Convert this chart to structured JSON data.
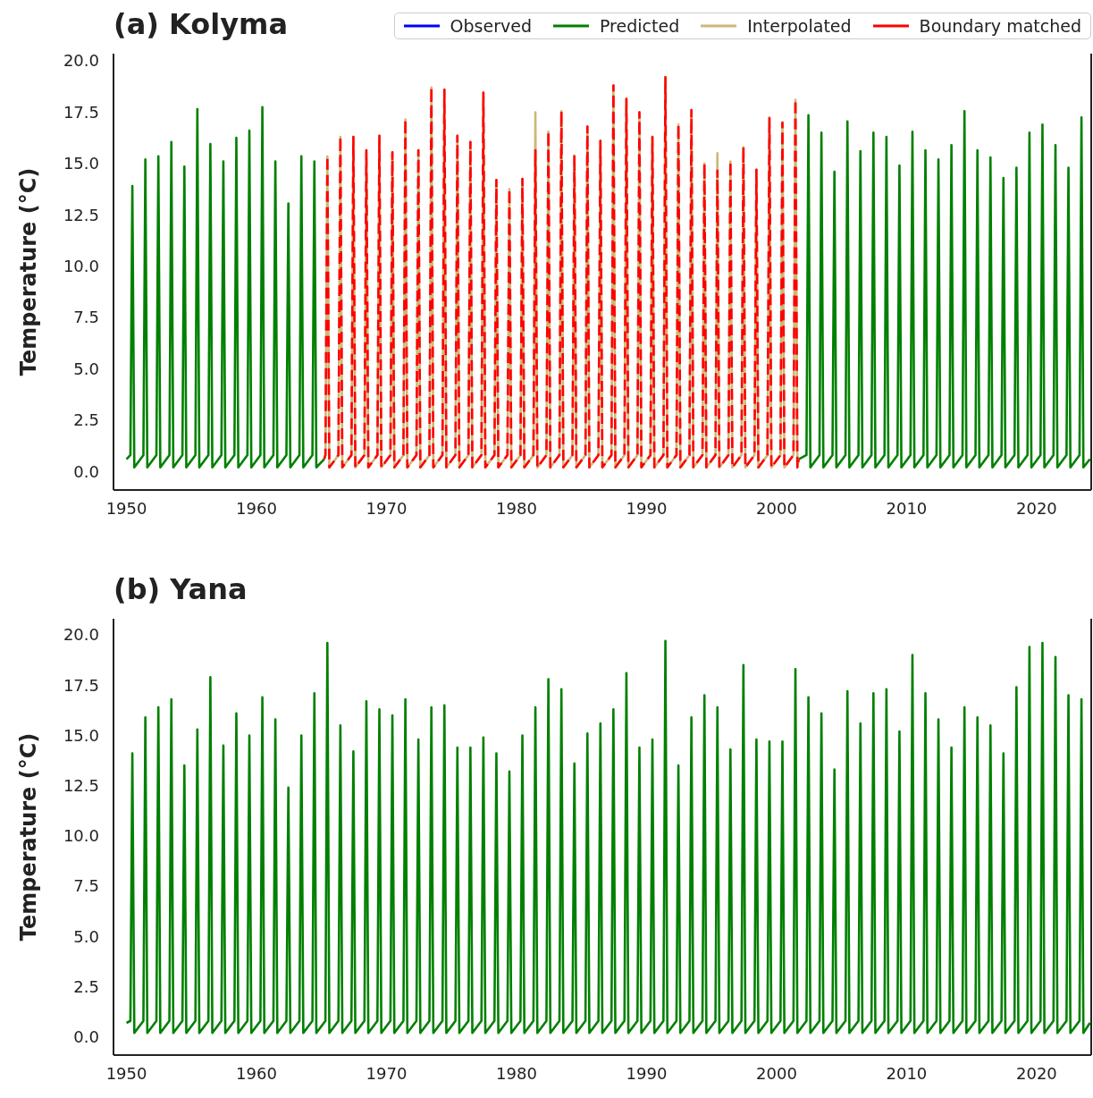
{
  "chart_data": [
    {
      "type": "line",
      "title": "(a) Kolyma",
      "ylabel": "Temperature (°C)",
      "xlim": [
        1949,
        2024.2
      ],
      "xticks": [
        1950,
        1960,
        1970,
        1980,
        1990,
        2000,
        2010,
        2020
      ],
      "ylim": [
        -0.9,
        20.35
      ],
      "yticks": [
        {
          "value": 0,
          "label": "0.0"
        },
        {
          "value": 2.5,
          "label": "2.5"
        },
        {
          "value": 5,
          "label": "5.0"
        },
        {
          "value": 7.5,
          "label": "7.5"
        },
        {
          "value": 10,
          "label": "10.0"
        },
        {
          "value": 12.5,
          "label": "12.5"
        },
        {
          "value": 15,
          "label": "15.0"
        },
        {
          "value": 17.5,
          "label": "17.5"
        },
        {
          "value": 20,
          "label": "20.0"
        }
      ],
      "grid": false,
      "legend": "top right",
      "series": [
        {
          "name": "Observed",
          "color": "#0000ff",
          "line_style": "solid"
        },
        {
          "name": "Predicted",
          "color": "#008000",
          "line_style": "solid",
          "x": [
            1950,
            1950.3,
            1950.45,
            1950.6,
            1951.3,
            1951.45,
            1951.6,
            1952.3,
            1952.45,
            1952.6,
            1953.3,
            1953.45,
            1953.6,
            1954.3,
            1954.45,
            1954.6,
            1955.3,
            1955.45,
            1955.6,
            1956.3,
            1956.45,
            1956.6,
            1957.3,
            1957.45,
            1957.6,
            1958.3,
            1958.45,
            1958.6,
            1959.3,
            1959.45,
            1959.6,
            1960.3,
            1960.45,
            1960.6,
            1961.3,
            1961.45,
            1961.6,
            1962.3,
            1962.45,
            1962.6,
            1963.3,
            1963.45,
            1963.6,
            1964.3,
            1964.45,
            1964.6,
            1965.2,
            1983,
            2001.7,
            2002.3,
            2002.45,
            2002.6,
            2003.3,
            2003.45,
            2003.6,
            2004.3,
            2004.45,
            2004.6,
            2005.3,
            2005.45,
            2005.6,
            2006.3,
            2006.45,
            2006.6,
            2007.3,
            2007.45,
            2007.6,
            2008.3,
            2008.45,
            2008.6,
            2009.3,
            2009.45,
            2009.6,
            2010.3,
            2010.45,
            2010.6,
            2011.3,
            2011.45,
            2011.6,
            2012.3,
            2012.45,
            2012.6,
            2013.3,
            2013.45,
            2013.6,
            2014.3,
            2014.45,
            2014.6,
            2015.3,
            2015.45,
            2015.6,
            2016.3,
            2016.45,
            2016.6,
            2017.3,
            2017.45,
            2017.6,
            2018.3,
            2018.45,
            2018.6,
            2019.3,
            2019.45,
            2019.6,
            2020.3,
            2020.45,
            2020.6,
            2021.3,
            2021.45,
            2021.6,
            2022.3,
            2022.45,
            2022.6,
            2023.3,
            2023.45,
            2023.6,
            2024.1
          ],
          "values": [
            0.6,
            0.8,
            13.9,
            0.2,
            0.8,
            15.2,
            0.2,
            0.8,
            15.35,
            0.2,
            0.8,
            16.05,
            0.2,
            0.8,
            14.85,
            0.2,
            0.8,
            17.65,
            0.2,
            0.8,
            15.95,
            0.2,
            0.8,
            15.1,
            0.2,
            0.8,
            16.25,
            0.2,
            0.8,
            16.6,
            0.2,
            0.8,
            17.75,
            0.2,
            0.8,
            15.1,
            0.2,
            0.8,
            13.05,
            0.2,
            0.8,
            15.35,
            0.2,
            0.8,
            15.1,
            0.2,
            0.6,
            null,
            0.6,
            0.8,
            17.35,
            0.2,
            0.8,
            16.5,
            0.2,
            0.8,
            14.6,
            0.2,
            0.8,
            17.05,
            0.2,
            0.8,
            15.6,
            0.2,
            0.8,
            16.5,
            0.2,
            0.8,
            16.3,
            0.2,
            0.8,
            14.9,
            0.2,
            0.8,
            16.55,
            0.2,
            0.8,
            15.65,
            0.2,
            0.8,
            15.2,
            0.2,
            0.8,
            15.9,
            0.2,
            0.8,
            17.55,
            0.2,
            0.8,
            15.65,
            0.2,
            0.8,
            15.3,
            0.2,
            0.8,
            14.3,
            0.2,
            0.8,
            14.8,
            0.2,
            0.8,
            16.5,
            0.2,
            0.8,
            16.9,
            0.2,
            0.8,
            15.9,
            0.2,
            0.8,
            14.8,
            0.2,
            0.8,
            17.25,
            0.2,
            0.6
          ]
        },
        {
          "name": "Interpolated",
          "color": "#cdb779",
          "line_style": "solid",
          "x": [
            1965.2,
            1965.3,
            1965.45,
            1965.6,
            1966.3,
            1966.45,
            1966.6,
            1967.3,
            1967.45,
            1967.6,
            1968.3,
            1968.45,
            1968.6,
            1969.3,
            1969.45,
            1969.6,
            1970.3,
            1970.45,
            1970.6,
            1971.3,
            1971.45,
            1971.6,
            1972.3,
            1972.45,
            1972.6,
            1973.3,
            1973.45,
            1973.6,
            1974.3,
            1974.45,
            1974.6,
            1975.3,
            1975.45,
            1975.6,
            1976.3,
            1976.45,
            1976.6,
            1977.3,
            1977.45,
            1977.6,
            1978.3,
            1978.45,
            1978.6,
            1979.3,
            1979.45,
            1979.6,
            1980.3,
            1980.45,
            1980.6,
            1981.3,
            1981.45,
            1981.6,
            1982.3,
            1982.45,
            1982.6,
            1983.3,
            1983.45,
            1983.6,
            1984.3,
            1984.45,
            1984.6,
            1985.3,
            1985.45,
            1985.6,
            1986.3,
            1986.45,
            1986.6,
            1987.3,
            1987.45,
            1987.6,
            1988.3,
            1988.45,
            1988.6,
            1989.3,
            1989.45,
            1989.6,
            1990.3,
            1990.45,
            1990.6,
            1991.3,
            1991.45,
            1991.6,
            1992.3,
            1992.45,
            1992.6,
            1993.3,
            1993.45,
            1993.6,
            1994.3,
            1994.45,
            1994.6,
            1995.3,
            1995.45,
            1995.6,
            1996.3,
            1996.45,
            1996.6,
            1997.3,
            1997.45,
            1997.6,
            1998.3,
            1998.45,
            1998.6,
            1999.3,
            1999.45,
            1999.6,
            2000.3,
            2000.45,
            2000.6,
            2001.3,
            2001.45,
            2001.6,
            2001.7
          ],
          "values": [
            0.6,
            0.8,
            15.35,
            0.2,
            0.8,
            16.3,
            0.2,
            0.8,
            16.3,
            0.2,
            0.8,
            15.65,
            0.2,
            0.8,
            16.35,
            0.2,
            0.8,
            15.55,
            0.2,
            0.8,
            17.15,
            0.2,
            0.8,
            15.65,
            0.2,
            0.8,
            18.7,
            0.2,
            0.8,
            18.6,
            0.2,
            0.8,
            16.35,
            0.2,
            0.8,
            16.05,
            0.2,
            0.8,
            18.45,
            0.2,
            0.8,
            14.2,
            0.2,
            0.8,
            13.75,
            0.2,
            0.8,
            14.25,
            0.2,
            0.8,
            17.5,
            0.2,
            0.8,
            16.55,
            0.2,
            0.8,
            17.55,
            0.2,
            0.8,
            15.4,
            0.2,
            0.8,
            16.8,
            0.2,
            0.8,
            16.1,
            0.2,
            0.8,
            18.8,
            0.2,
            0.8,
            18.15,
            0.2,
            0.8,
            17.5,
            0.2,
            0.8,
            16.3,
            0.2,
            0.8,
            19.2,
            0.2,
            0.8,
            16.9,
            0.2,
            0.8,
            17.6,
            0.2,
            0.8,
            15.0,
            0.2,
            0.8,
            15.5,
            0.2,
            0.8,
            15.1,
            0.2,
            0.8,
            15.8,
            0.2,
            0.8,
            14.7,
            0.2,
            0.8,
            17.25,
            0.2,
            0.8,
            17.0,
            0.2,
            0.8,
            18.1,
            0.2,
            0.6
          ]
        },
        {
          "name": "Boundary matched",
          "color": "#ff0000",
          "line_style": "dashed",
          "x": [
            1965.2,
            1965.3,
            1965.45,
            1965.6,
            1966.3,
            1966.45,
            1966.6,
            1967.3,
            1967.45,
            1967.6,
            1968.3,
            1968.45,
            1968.6,
            1969.3,
            1969.45,
            1969.6,
            1970.3,
            1970.45,
            1970.6,
            1971.3,
            1971.45,
            1971.6,
            1972.3,
            1972.45,
            1972.6,
            1973.3,
            1973.45,
            1973.6,
            1974.3,
            1974.45,
            1974.6,
            1975.3,
            1975.45,
            1975.6,
            1976.3,
            1976.45,
            1976.6,
            1977.3,
            1977.45,
            1977.6,
            1978.3,
            1978.45,
            1978.6,
            1979.3,
            1979.45,
            1979.6,
            1980.3,
            1980.45,
            1980.6,
            1981.3,
            1981.45,
            1981.6,
            1982.3,
            1982.45,
            1982.6,
            1983.3,
            1983.45,
            1983.6,
            1984.3,
            1984.45,
            1984.6,
            1985.3,
            1985.45,
            1985.6,
            1986.3,
            1986.45,
            1986.6,
            1987.3,
            1987.45,
            1987.6,
            1988.3,
            1988.45,
            1988.6,
            1989.3,
            1989.45,
            1989.6,
            1990.3,
            1990.45,
            1990.6,
            1991.3,
            1991.45,
            1991.6,
            1992.3,
            1992.45,
            1992.6,
            1993.3,
            1993.45,
            1993.6,
            1994.3,
            1994.45,
            1994.6,
            1995.3,
            1995.45,
            1995.6,
            1996.3,
            1996.45,
            1996.6,
            1997.3,
            1997.45,
            1997.6,
            1998.3,
            1998.45,
            1998.6,
            1999.3,
            1999.45,
            1999.6,
            2000.3,
            2000.45,
            2000.6,
            2001.3,
            2001.45,
            2001.6,
            2001.7
          ],
          "values": [
            0.6,
            0.8,
            15.35,
            0.2,
            0.8,
            16.3,
            0.2,
            0.8,
            16.3,
            0.2,
            0.8,
            15.65,
            0.2,
            0.8,
            16.35,
            0.2,
            0.8,
            15.55,
            0.2,
            0.8,
            17.15,
            0.2,
            0.8,
            15.65,
            0.2,
            0.8,
            18.7,
            0.2,
            0.8,
            18.6,
            0.2,
            0.8,
            16.35,
            0.2,
            0.8,
            16.05,
            0.2,
            0.8,
            18.45,
            0.2,
            0.8,
            14.2,
            0.2,
            0.8,
            13.75,
            0.2,
            0.8,
            14.25,
            0.2,
            0.8,
            15.65,
            0.2,
            0.8,
            16.55,
            0.2,
            0.8,
            17.55,
            0.2,
            0.8,
            15.4,
            0.2,
            0.8,
            16.8,
            0.2,
            0.8,
            16.1,
            0.2,
            0.8,
            18.8,
            0.2,
            0.8,
            18.15,
            0.2,
            0.8,
            17.5,
            0.2,
            0.8,
            16.3,
            0.2,
            0.8,
            19.2,
            0.2,
            0.8,
            16.9,
            0.2,
            0.8,
            17.6,
            0.2,
            0.8,
            15.0,
            0.2,
            0.8,
            14.65,
            0.2,
            0.8,
            15.1,
            0.2,
            0.8,
            15.8,
            0.2,
            0.8,
            14.7,
            0.2,
            0.8,
            17.25,
            0.2,
            0.8,
            17.0,
            0.2,
            0.8,
            18.1,
            0.2,
            0.6
          ]
        }
      ]
    },
    {
      "type": "line",
      "title": "(b) Yana",
      "ylabel": "Temperature (°C)",
      "xlim": [
        1949,
        2024.2
      ],
      "xticks": [
        1950,
        1960,
        1970,
        1980,
        1990,
        2000,
        2010,
        2020
      ],
      "ylim": [
        -0.9,
        20.8
      ],
      "yticks": [
        {
          "value": 0,
          "label": "0.0"
        },
        {
          "value": 2.5,
          "label": "2.5"
        },
        {
          "value": 5,
          "label": "5.0"
        },
        {
          "value": 7.5,
          "label": "7.5"
        },
        {
          "value": 10,
          "label": "10.0"
        },
        {
          "value": 12.5,
          "label": "12.5"
        },
        {
          "value": 15,
          "label": "15.0"
        },
        {
          "value": 17.5,
          "label": "17.5"
        },
        {
          "value": 20,
          "label": "20.0"
        }
      ],
      "grid": false,
      "legend": false,
      "series": [
        {
          "color": "#008000",
          "line_style": "solid",
          "x": [
            1950,
            1950.3,
            1950.45,
            1950.6,
            1951.3,
            1951.45,
            1951.6,
            1952.3,
            1952.45,
            1952.6,
            1953.3,
            1953.45,
            1953.6,
            1954.3,
            1954.45,
            1954.6,
            1955.3,
            1955.45,
            1955.6,
            1956.3,
            1956.45,
            1956.6,
            1957.3,
            1957.45,
            1957.6,
            1958.3,
            1958.45,
            1958.6,
            1959.3,
            1959.45,
            1959.6,
            1960.3,
            1960.45,
            1960.6,
            1961.3,
            1961.45,
            1961.6,
            1962.3,
            1962.45,
            1962.6,
            1963.3,
            1963.45,
            1963.6,
            1964.3,
            1964.45,
            1964.6,
            1965.3,
            1965.45,
            1965.6,
            1966.3,
            1966.45,
            1966.6,
            1967.3,
            1967.45,
            1967.6,
            1968.3,
            1968.45,
            1968.6,
            1969.3,
            1969.45,
            1969.6,
            1970.3,
            1970.45,
            1970.6,
            1971.3,
            1971.45,
            1971.6,
            1972.3,
            1972.45,
            1972.6,
            1973.3,
            1973.45,
            1973.6,
            1974.3,
            1974.45,
            1974.6,
            1975.3,
            1975.45,
            1975.6,
            1976.3,
            1976.45,
            1976.6,
            1977.3,
            1977.45,
            1977.6,
            1978.3,
            1978.45,
            1978.6,
            1979.3,
            1979.45,
            1979.6,
            1980.3,
            1980.45,
            1980.6,
            1981.3,
            1981.45,
            1981.6,
            1982.3,
            1982.45,
            1982.6,
            1983.3,
            1983.45,
            1983.6,
            1984.3,
            1984.45,
            1984.6,
            1985.3,
            1985.45,
            1985.6,
            1986.3,
            1986.45,
            1986.6,
            1987.3,
            1987.45,
            1987.6,
            1988.3,
            1988.45,
            1988.6,
            1989.3,
            1989.45,
            1989.6,
            1990.3,
            1990.45,
            1990.6,
            1991.3,
            1991.45,
            1991.6,
            1992.3,
            1992.45,
            1992.6,
            1993.3,
            1993.45,
            1993.6,
            1994.3,
            1994.45,
            1994.6,
            1995.3,
            1995.45,
            1995.6,
            1996.3,
            1996.45,
            1996.6,
            1997.3,
            1997.45,
            1997.6,
            1998.3,
            1998.45,
            1998.6,
            1999.3,
            1999.45,
            1999.6,
            2000.3,
            2000.45,
            2000.6,
            2001.3,
            2001.45,
            2001.6,
            2002.3,
            2002.45,
            2002.6,
            2003.3,
            2003.45,
            2003.6,
            2004.3,
            2004.45,
            2004.6,
            2005.3,
            2005.45,
            2005.6,
            2006.3,
            2006.45,
            2006.6,
            2007.3,
            2007.45,
            2007.6,
            2008.3,
            2008.45,
            2008.6,
            2009.3,
            2009.45,
            2009.6,
            2010.3,
            2010.45,
            2010.6,
            2011.3,
            2011.45,
            2011.6,
            2012.3,
            2012.45,
            2012.6,
            2013.3,
            2013.45,
            2013.6,
            2014.3,
            2014.45,
            2014.6,
            2015.3,
            2015.45,
            2015.6,
            2016.3,
            2016.45,
            2016.6,
            2017.3,
            2017.45,
            2017.6,
            2018.3,
            2018.45,
            2018.6,
            2019.3,
            2019.45,
            2019.6,
            2020.3,
            2020.45,
            2020.6,
            2021.3,
            2021.45,
            2021.6,
            2022.3,
            2022.45,
            2022.6,
            2023.3,
            2023.45,
            2023.6,
            2024.1
          ],
          "values": [
            0.7,
            0.8,
            14.1,
            0.2,
            0.8,
            15.9,
            0.2,
            0.8,
            16.4,
            0.2,
            0.8,
            16.8,
            0.2,
            0.8,
            13.5,
            0.2,
            0.8,
            15.3,
            0.2,
            0.8,
            17.9,
            0.2,
            0.8,
            14.5,
            0.2,
            0.8,
            16.1,
            0.2,
            0.8,
            15.0,
            0.2,
            0.8,
            16.9,
            0.2,
            0.8,
            15.8,
            0.2,
            0.8,
            12.4,
            0.2,
            0.8,
            15.0,
            0.2,
            0.8,
            17.1,
            0.2,
            0.8,
            19.6,
            0.2,
            0.8,
            15.5,
            0.2,
            0.8,
            14.2,
            0.2,
            0.8,
            16.7,
            0.2,
            0.8,
            16.3,
            0.2,
            0.8,
            16.0,
            0.2,
            0.8,
            16.8,
            0.2,
            0.8,
            14.8,
            0.2,
            0.8,
            16.4,
            0.2,
            0.8,
            16.5,
            0.2,
            0.8,
            14.4,
            0.2,
            0.8,
            14.4,
            0.2,
            0.8,
            14.9,
            0.2,
            0.8,
            14.1,
            0.2,
            0.8,
            13.2,
            0.2,
            0.8,
            15.0,
            0.2,
            0.8,
            16.4,
            0.2,
            0.8,
            17.8,
            0.2,
            0.8,
            17.3,
            0.2,
            0.8,
            13.6,
            0.2,
            0.8,
            15.1,
            0.2,
            0.8,
            15.6,
            0.2,
            0.8,
            16.3,
            0.2,
            0.8,
            18.1,
            0.2,
            0.8,
            14.4,
            0.2,
            0.8,
            14.8,
            0.2,
            0.8,
            19.7,
            0.2,
            0.8,
            13.5,
            0.2,
            0.8,
            15.9,
            0.2,
            0.8,
            17.0,
            0.2,
            0.8,
            16.4,
            0.2,
            0.8,
            14.3,
            0.2,
            0.8,
            18.5,
            0.2,
            0.8,
            14.8,
            0.2,
            0.8,
            14.7,
            0.2,
            0.8,
            14.7,
            0.2,
            0.8,
            18.3,
            0.2,
            0.8,
            16.9,
            0.2,
            0.8,
            16.1,
            0.2,
            0.8,
            13.3,
            0.2,
            0.8,
            17.2,
            0.2,
            0.8,
            15.6,
            0.2,
            0.8,
            17.1,
            0.2,
            0.8,
            17.3,
            0.2,
            0.8,
            15.2,
            0.2,
            0.8,
            19.0,
            0.2,
            0.8,
            17.1,
            0.2,
            0.8,
            15.8,
            0.2,
            0.8,
            14.4,
            0.2,
            0.8,
            16.4,
            0.2,
            0.8,
            15.9,
            0.2,
            0.8,
            15.5,
            0.2,
            0.8,
            14.1,
            0.2,
            0.8,
            17.4,
            0.2,
            0.8,
            19.4,
            0.2,
            0.8,
            19.6,
            0.2,
            0.8,
            18.9,
            0.2,
            0.8,
            17.0,
            0.2,
            0.8,
            16.8,
            0.2,
            0.7
          ]
        }
      ]
    }
  ]
}
